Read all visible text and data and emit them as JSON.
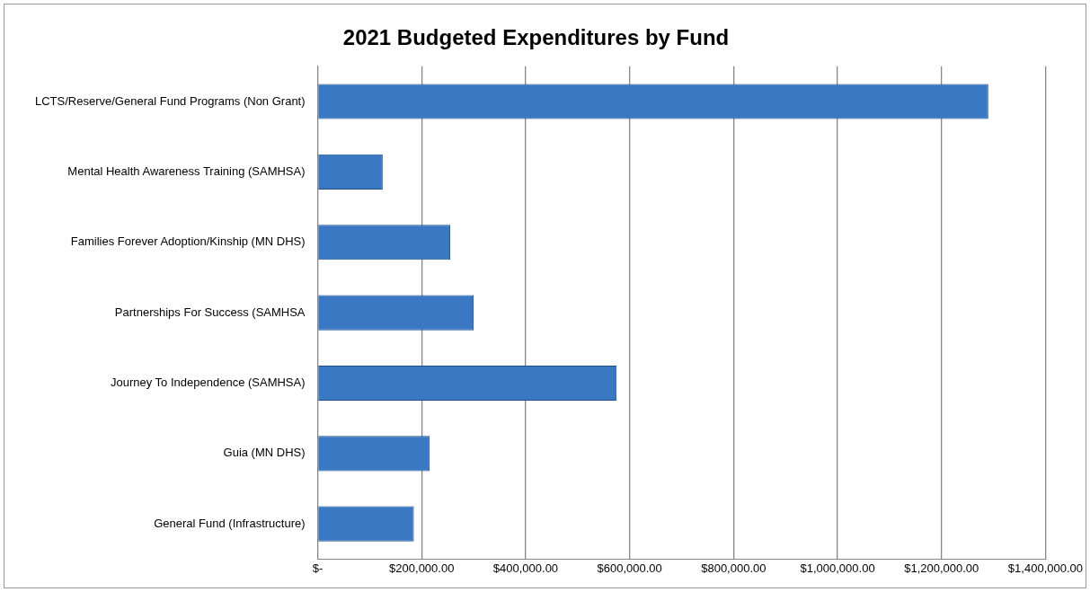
{
  "chart_data": {
    "type": "bar",
    "orientation": "horizontal",
    "title": "2021 Budgeted Expenditures by Fund",
    "categories": [
      "LCTS/Reserve/General Fund Programs (Non Grant)",
      "Mental Health Awareness Training (SAMHSA)",
      "Families Forever Adoption/Kinship (MN DHS)",
      "Partnerships For Success (SAMHSA",
      "Journey To Independence (SAMHSA)",
      "Guia (MN DHS)",
      "General Fund (Infrastructure)"
    ],
    "values": [
      1290000,
      125000,
      255000,
      300000,
      575000,
      215000,
      185000
    ],
    "color": "#3b78c3",
    "xlim": [
      0,
      1400000
    ],
    "xticks": [
      {
        "value": 0,
        "label": "$-"
      },
      {
        "value": 200000,
        "label": "$200,000.00"
      },
      {
        "value": 400000,
        "label": "$400,000.00"
      },
      {
        "value": 600000,
        "label": "$600,000.00"
      },
      {
        "value": 800000,
        "label": "$800,000.00"
      },
      {
        "value": 1000000,
        "label": "$1,000,000.00"
      },
      {
        "value": 1200000,
        "label": "$1,200,000.00"
      },
      {
        "value": 1400000,
        "label": "$1,400,000.00"
      }
    ],
    "grid": "x",
    "legend": false
  }
}
